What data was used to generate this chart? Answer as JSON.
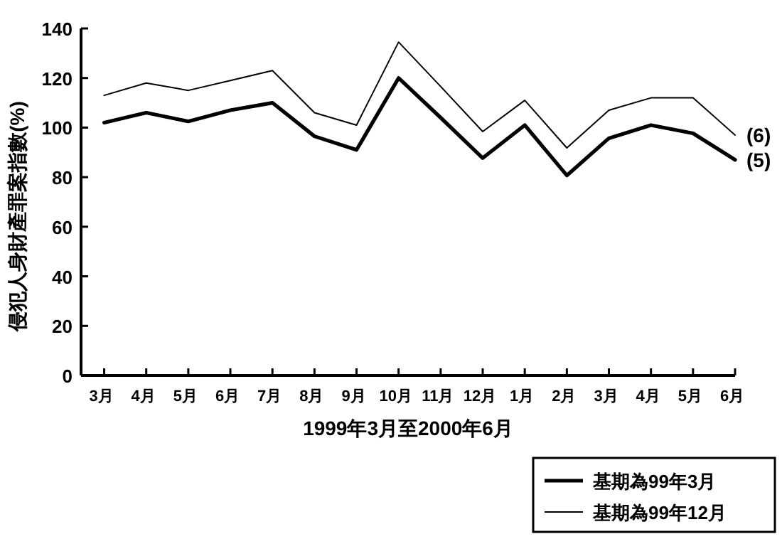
{
  "chart_data": {
    "type": "line",
    "ylabel": "侵犯人身財產罪案指數(%)",
    "xlabel": "1999年3月至2000年6月",
    "categories": [
      "3月",
      "4月",
      "5月",
      "6月",
      "7月",
      "8月",
      "9月",
      "10月",
      "11月",
      "12月",
      "1月",
      "2月",
      "3月",
      "4月",
      "5月",
      "6月"
    ],
    "series": [
      {
        "name": "基期為99年3月",
        "color": "#000000",
        "values": [
          102,
          106,
          102.5,
          107,
          110,
          96.5,
          91,
          120,
          104,
          87.7,
          101,
          80.7,
          95.7,
          101,
          97.7,
          87
        ]
      },
      {
        "name": "基期為99年12月",
        "color": "#000000",
        "values": [
          113,
          118,
          115,
          119,
          123,
          106,
          101,
          134.5,
          116.6,
          98.4,
          111,
          91.8,
          107,
          112,
          112,
          97
        ]
      }
    ],
    "annotations": [
      "(6)",
      "(5)"
    ],
    "ylim": [
      0,
      140
    ],
    "yticks": [
      0,
      20,
      40,
      60,
      80,
      100,
      120,
      140
    ],
    "grid": false,
    "legend": "bottom right",
    "marker": "none",
    "line_style": "solid"
  }
}
